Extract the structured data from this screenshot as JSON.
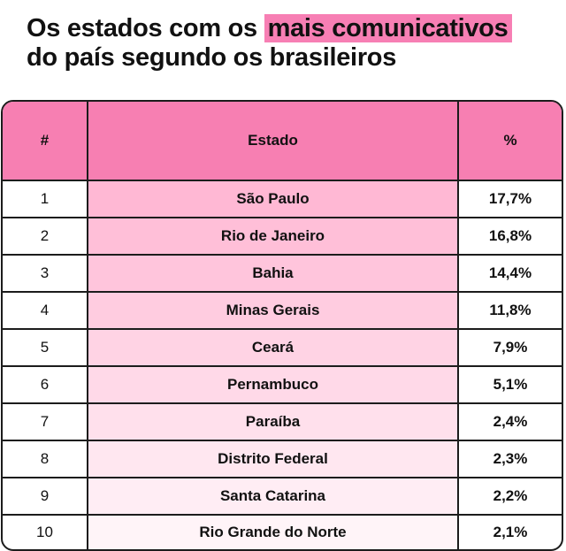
{
  "title": {
    "line1_before": "Os estados com os",
    "line1_highlight": "mais comunicativos",
    "line2": "do país segundo os brasileiros"
  },
  "colors": {
    "highlight": "#f77fb4",
    "header_bg": "#f77fb2",
    "state_gradient_top": "#ffb8d4",
    "state_gradient_bottom": "#fff4f8"
  },
  "chart_data": {
    "type": "table",
    "columns": [
      "#",
      "Estado",
      "%"
    ],
    "rows": [
      {
        "rank": "1",
        "state": "São Paulo",
        "pct": "17,7%",
        "value": 17.7
      },
      {
        "rank": "2",
        "state": "Rio de Janeiro",
        "pct": "16,8%",
        "value": 16.8
      },
      {
        "rank": "3",
        "state": "Bahia",
        "pct": "14,4%",
        "value": 14.4
      },
      {
        "rank": "4",
        "state": "Minas Gerais",
        "pct": "11,8%",
        "value": 11.8
      },
      {
        "rank": "5",
        "state": "Ceará",
        "pct": "7,9%",
        "value": 7.9
      },
      {
        "rank": "6",
        "state": "Pernambuco",
        "pct": "5,1%",
        "value": 5.1
      },
      {
        "rank": "7",
        "state": "Paraíba",
        "pct": "2,4%",
        "value": 2.4
      },
      {
        "rank": "8",
        "state": "Distrito Federal",
        "pct": "2,3%",
        "value": 2.3
      },
      {
        "rank": "9",
        "state": "Santa Catarina",
        "pct": "2,2%",
        "value": 2.2
      },
      {
        "rank": "10",
        "state": "Rio Grande do Norte",
        "pct": "2,1%",
        "value": 2.1
      }
    ]
  }
}
